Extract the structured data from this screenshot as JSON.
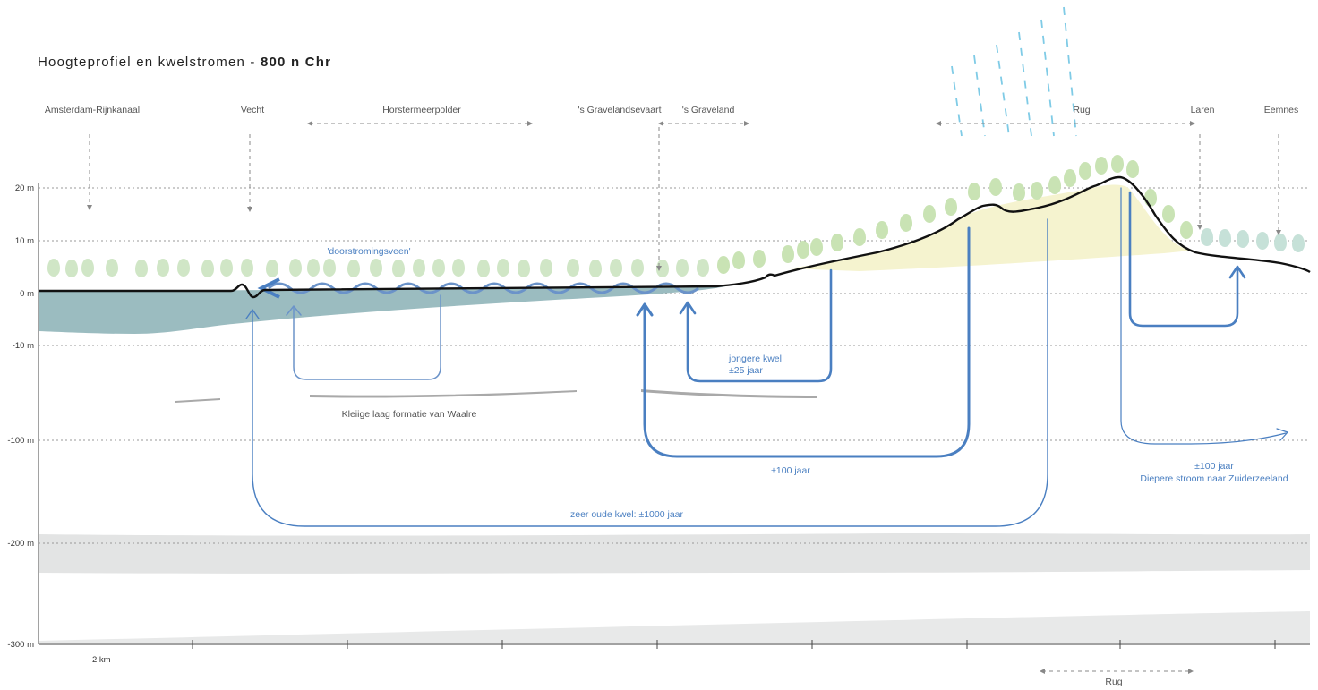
{
  "title": {
    "normal": "Hoogteprofiel en kwelstromen - ",
    "bold": "800 n Chr"
  },
  "places": {
    "amsterdam_rijnkanaal": "Amsterdam-Rijnkanaal",
    "vecht": "Vecht",
    "horstermeerpolder": "Horstermeerpolder",
    "gravelandsevaart": "'s Gravelandsevaart",
    "graveland": "'s Graveland",
    "rug": "Rug",
    "laren": "Laren",
    "eemnes": "Eemnes"
  },
  "axis": {
    "labels": [
      "20 m",
      "10 m",
      "0 m",
      "-10 m",
      "-100 m",
      "-200 m",
      "-300 m"
    ],
    "scale": "2 km"
  },
  "annotations": {
    "doorstromingsveen": "'doorstromingsveen'",
    "jongere_kwel_1": "jongere kwel",
    "jongere_kwel_2": "±25 jaar",
    "kleiige_laag": "Kleiige laag formatie van Waalre",
    "honderd_jaar": "±100 jaar",
    "zeer_oude_kwel": "zeer oude kwel: ±1000 jaar",
    "diepere_1": "±100 jaar",
    "diepere_2": "Diepere stroom naar Zuiderzeeland",
    "rug_bottom": "Rug"
  },
  "colors": {
    "flow": "#4a7fc1",
    "peat_water": "#9bbcc0",
    "sand": "#f5f3cf",
    "tree_green": "#c9e3b4",
    "deep_layer": "#e3e4e4",
    "rain": "#7fcbe6"
  }
}
